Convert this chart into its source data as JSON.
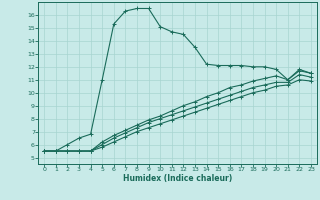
{
  "xlabel": "Humidex (Indice chaleur)",
  "ylabel": "",
  "background_color": "#c8eae8",
  "grid_color": "#a8d5d0",
  "line_color": "#1a6b5a",
  "xlim": [
    -0.5,
    23.5
  ],
  "ylim": [
    4.5,
    17.0
  ],
  "xticks": [
    0,
    1,
    2,
    3,
    4,
    5,
    6,
    7,
    8,
    9,
    10,
    11,
    12,
    13,
    14,
    15,
    16,
    17,
    18,
    19,
    20,
    21,
    22,
    23
  ],
  "yticks": [
    5,
    6,
    7,
    8,
    9,
    10,
    11,
    12,
    13,
    14,
    15,
    16
  ],
  "line1_x": [
    0,
    1,
    2,
    3,
    4,
    5,
    6,
    7,
    8,
    9,
    10,
    11,
    12,
    13,
    14,
    15,
    16,
    17,
    18,
    19,
    20,
    21,
    22,
    23
  ],
  "line1_y": [
    5.5,
    5.5,
    6.0,
    6.5,
    6.8,
    11.0,
    15.3,
    16.3,
    16.5,
    16.5,
    15.1,
    14.7,
    14.5,
    13.5,
    12.2,
    12.1,
    12.1,
    12.1,
    12.0,
    12.0,
    11.8,
    11.0,
    11.8,
    11.5
  ],
  "line2_x": [
    0,
    1,
    2,
    3,
    4,
    5,
    6,
    7,
    8,
    9,
    10,
    11,
    12,
    13,
    14,
    15,
    16,
    17,
    18,
    19,
    20,
    21,
    22,
    23
  ],
  "line2_y": [
    5.5,
    5.5,
    5.5,
    5.5,
    5.5,
    6.2,
    6.7,
    7.1,
    7.5,
    7.9,
    8.2,
    8.6,
    9.0,
    9.3,
    9.7,
    10.0,
    10.4,
    10.6,
    10.9,
    11.1,
    11.3,
    11.0,
    11.7,
    11.5
  ],
  "line3_x": [
    0,
    1,
    2,
    3,
    4,
    5,
    6,
    7,
    8,
    9,
    10,
    11,
    12,
    13,
    14,
    15,
    16,
    17,
    18,
    19,
    20,
    21,
    22,
    23
  ],
  "line3_y": [
    5.5,
    5.5,
    5.5,
    5.5,
    5.5,
    6.0,
    6.5,
    6.9,
    7.3,
    7.7,
    8.0,
    8.3,
    8.6,
    8.9,
    9.2,
    9.5,
    9.8,
    10.1,
    10.4,
    10.6,
    10.8,
    10.8,
    11.4,
    11.2
  ],
  "line4_x": [
    0,
    1,
    2,
    3,
    4,
    5,
    6,
    7,
    8,
    9,
    10,
    11,
    12,
    13,
    14,
    15,
    16,
    17,
    18,
    19,
    20,
    21,
    22,
    23
  ],
  "line4_y": [
    5.5,
    5.5,
    5.5,
    5.5,
    5.5,
    5.8,
    6.2,
    6.6,
    7.0,
    7.3,
    7.6,
    7.9,
    8.2,
    8.5,
    8.8,
    9.1,
    9.4,
    9.7,
    10.0,
    10.2,
    10.5,
    10.6,
    11.0,
    10.9
  ]
}
